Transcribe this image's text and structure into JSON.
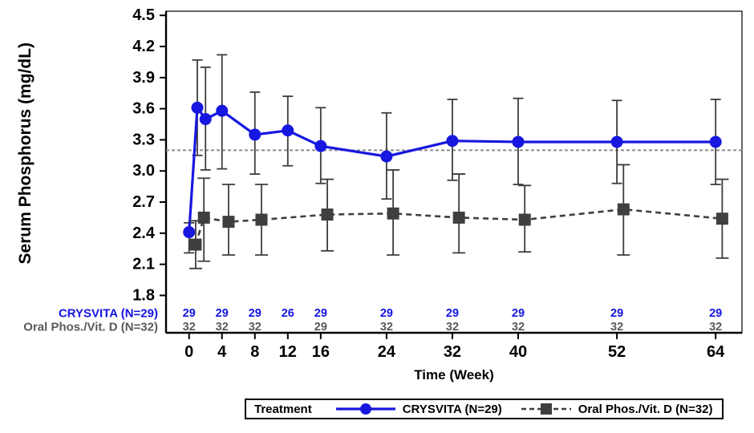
{
  "chart_data": {
    "type": "line",
    "title": "",
    "xlabel": "Time (Week)",
    "ylabel": "Serum Phosphorus (mg/dL)",
    "x_ticks": [
      0,
      4,
      8,
      12,
      16,
      24,
      32,
      40,
      52,
      64
    ],
    "y_ticks": [
      1.8,
      2.1,
      2.4,
      2.7,
      3.0,
      3.3,
      3.6,
      3.9,
      4.2,
      4.5
    ],
    "xlim": [
      -2.8,
      67.2
    ],
    "ylim": [
      1.44,
      4.54
    ],
    "grid": false,
    "reference_line": {
      "y": 3.2,
      "style": "dashed",
      "color": "#8c8c8c"
    },
    "error_bar_color": "#3d3d3d",
    "series": [
      {
        "name": "CRYSVITA (N=29)",
        "color": "#1717e0",
        "marker": "circle",
        "line_style": "solid",
        "x_offset": 0,
        "x": [
          0,
          1,
          2,
          4,
          8,
          12,
          16,
          24,
          32,
          40,
          52,
          64
        ],
        "y": [
          2.41,
          3.61,
          3.5,
          3.58,
          3.35,
          3.39,
          3.24,
          3.14,
          3.29,
          3.28,
          3.28,
          3.28
        ],
        "err_lo": [
          2.21,
          3.15,
          3.01,
          3.02,
          2.97,
          3.05,
          2.88,
          2.73,
          2.91,
          2.87,
          2.88,
          2.87
        ],
        "err_hi": [
          2.5,
          4.07,
          4.0,
          4.12,
          3.76,
          3.72,
          3.61,
          3.56,
          3.69,
          3.7,
          3.68,
          3.69
        ]
      },
      {
        "name": "Oral Phos./Vit. D (N=32)",
        "color": "#3f3f3f",
        "marker": "square",
        "line_style": "dashed",
        "x_offset": 0.8,
        "x": [
          0,
          1,
          4,
          8,
          16,
          24,
          32,
          40,
          52,
          64
        ],
        "y": [
          2.29,
          2.55,
          2.51,
          2.53,
          2.58,
          2.59,
          2.55,
          2.53,
          2.63,
          2.54
        ],
        "err_lo": [
          2.06,
          2.13,
          2.19,
          2.19,
          2.23,
          2.19,
          2.21,
          2.22,
          2.19,
          2.16
        ],
        "err_hi": [
          2.52,
          2.93,
          2.87,
          2.87,
          2.92,
          3.01,
          2.97,
          2.86,
          3.06,
          2.92
        ]
      }
    ],
    "n_table": {
      "rows": [
        {
          "label": "CRYSVITA (N=29)",
          "color": "#1414e0",
          "values": {
            "0": "29",
            "4": "29",
            "8": "29",
            "12": "26",
            "16": "29",
            "24": "29",
            "32": "29",
            "40": "29",
            "52": "29",
            "64": "29"
          }
        },
        {
          "label": "Oral Phos./Vit. D (N=32)",
          "color": "#595959",
          "values": {
            "0": "32",
            "4": "32",
            "8": "32",
            "12": "",
            "16": "29",
            "24": "32",
            "32": "32",
            "40": "32",
            "52": "32",
            "64": "32"
          }
        }
      ]
    },
    "legend": {
      "title": "Treatment",
      "position": "bottom"
    }
  }
}
